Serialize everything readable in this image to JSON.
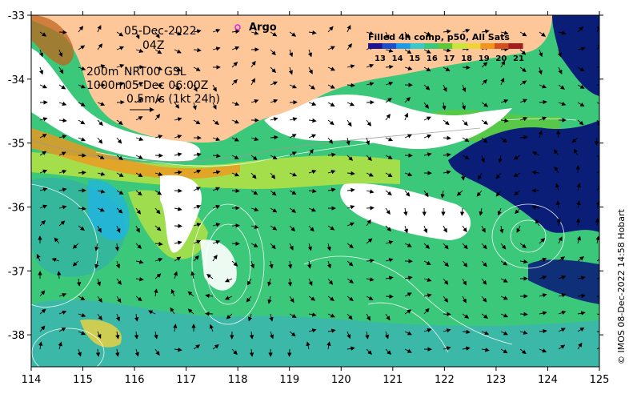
{
  "map": {
    "date": "05-Dec-2022",
    "hour": "04Z",
    "argo_label": "Argo",
    "depth_line": "200m",
    "depth_line2": "1000m",
    "product_line": "NRT00 GSL",
    "product_time": "05-Dec 06:00Z",
    "scale_label": "0.5m/s (1kt 24h)",
    "credit": "© IMOS 08-Dec-2022 14:58 Hobart",
    "legend": {
      "title": "Filled 4h comp, p50, All Sats",
      "ticks": [
        "13",
        "14",
        "15",
        "16",
        "17",
        "18",
        "19",
        "20",
        "21"
      ],
      "colors": [
        "#1e1490",
        "#1e4ec8",
        "#1e9be6",
        "#3cc8c8",
        "#3cc87a",
        "#5ec83c",
        "#c8e63c",
        "#f0d23c",
        "#f0961e",
        "#d2501e",
        "#a01e1e"
      ]
    },
    "lon_ticks": [
      "114",
      "115",
      "116",
      "117",
      "118",
      "119",
      "120",
      "121",
      "122",
      "123",
      "124",
      "125"
    ],
    "lat_ticks": [
      "-33",
      "-34",
      "-35",
      "-36",
      "-37",
      "-38"
    ],
    "lon_range": [
      114,
      125
    ],
    "lat_range": [
      -38.5,
      -33
    ],
    "colors": {
      "land": "#fdc79a",
      "ocean_green": "#3cc87a",
      "cloud": "#ffffff",
      "deep_blue": "#0a1e78"
    }
  }
}
